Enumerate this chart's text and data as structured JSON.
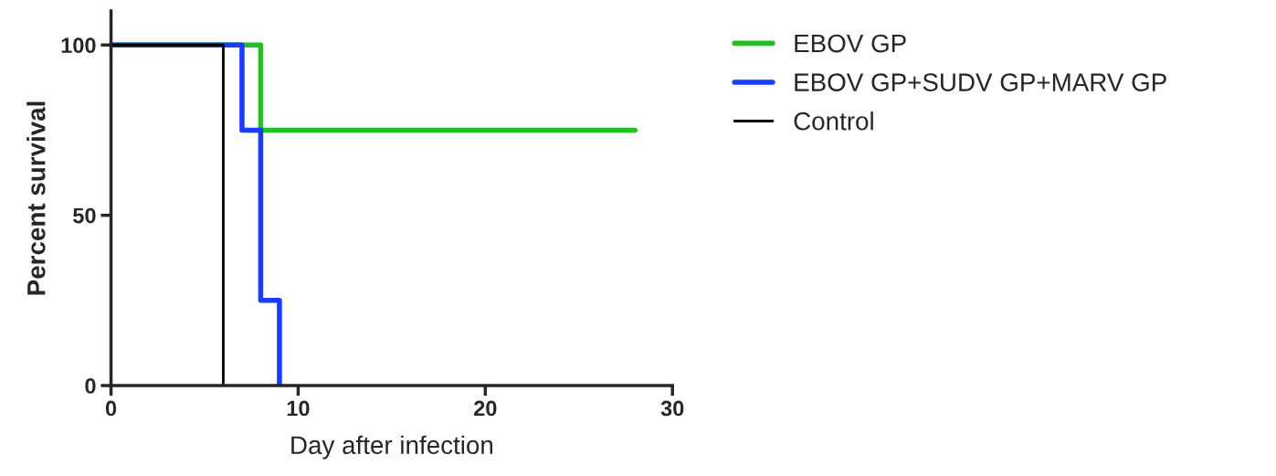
{
  "chart_data": {
    "type": "step",
    "xlabel": "Day after infection",
    "ylabel": "Percent survival",
    "xlim": [
      0,
      30
    ],
    "xticks": [
      0,
      10,
      20,
      30
    ],
    "ylim": [
      0,
      110
    ],
    "yticks": [
      0,
      50,
      100
    ],
    "grid": false,
    "legend": "right",
    "series": [
      {
        "name": "EBOV GP",
        "color": "#22c11e",
        "x": [
          0,
          8,
          28
        ],
        "values": [
          100,
          75,
          75
        ]
      },
      {
        "name": "EBOV GP+SUDV GP+MARV GP",
        "color": "#1a3cff",
        "x": [
          0,
          7,
          8,
          9
        ],
        "values": [
          100,
          75,
          25,
          0
        ]
      },
      {
        "name": "Control",
        "color": "#000000",
        "x": [
          0,
          6
        ],
        "values": [
          100,
          0
        ]
      }
    ]
  }
}
